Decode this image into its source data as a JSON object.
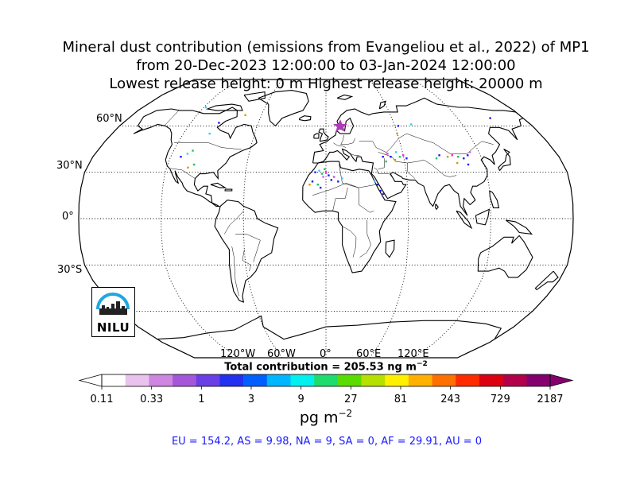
{
  "title": {
    "line1": "Mineral dust contribution (emissions from Evangeliou et al., 2022) of MP1",
    "line2": "from 20-Dec-2023 12:00:00 to 03-Jan-2024 12:00:00",
    "line3": "Lowest release height: 0 m       Highest release height: 20000 m"
  },
  "map": {
    "projection": "Robinson",
    "lat_labels": [
      "60°N",
      "30°N",
      "0°",
      "30°S"
    ],
    "lon_labels": [
      "120°W",
      "60°W",
      "0°",
      "60°E",
      "120°E"
    ],
    "release_marker": "star",
    "release_marker_color": "#b03ab8"
  },
  "logo": {
    "text": "NILU",
    "color": "#1ea7e0"
  },
  "total": {
    "prefix": "Total contribution = 205.53 ng m",
    "exponent": "−2"
  },
  "colorbar": {
    "ticks": [
      "0.11",
      "0.33",
      "1",
      "3",
      "9",
      "27",
      "81",
      "243",
      "729",
      "2187"
    ],
    "colors": [
      "#ffffff",
      "#e9c3ee",
      "#cf86e0",
      "#a657d9",
      "#6b3fe6",
      "#2231f0",
      "#0060ff",
      "#00b7ff",
      "#00f0f0",
      "#1edc6e",
      "#5bdc00",
      "#b6e000",
      "#fff000",
      "#ffb000",
      "#ff7000",
      "#ff2a00",
      "#dd0010",
      "#b4004a",
      "#85006e"
    ],
    "unit_prefix": "pg m",
    "unit_exponent": "−2"
  },
  "regions": "EU = 154.2,  AS = 9.98,  NA = 9,  SA = 0,  AF = 29.91,  AU = 0"
}
